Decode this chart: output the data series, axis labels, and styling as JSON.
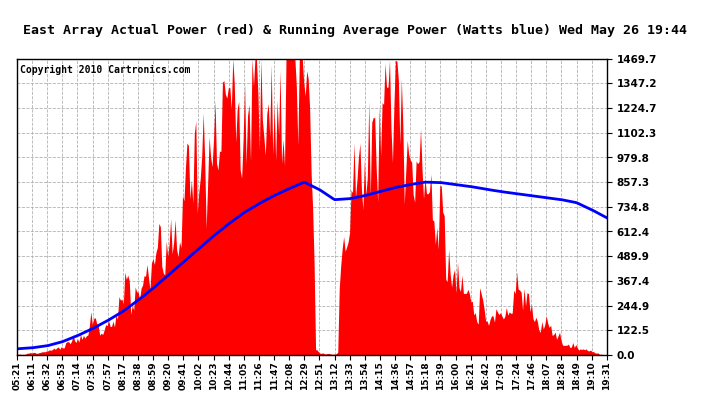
{
  "title": "East Array Actual Power (red) & Running Average Power (Watts blue) Wed May 26 19:44",
  "copyright": "Copyright 2010 Cartronics.com",
  "yticks": [
    0.0,
    122.5,
    244.9,
    367.4,
    489.9,
    612.4,
    734.8,
    857.3,
    979.8,
    1102.3,
    1224.7,
    1347.2,
    1469.7
  ],
  "ylim": [
    0,
    1469.7
  ],
  "fill_color": "red",
  "avg_color": "blue",
  "bg_color": "white",
  "grid_color": "#aaaaaa",
  "x_labels": [
    "05:21",
    "06:11",
    "06:32",
    "06:53",
    "07:14",
    "07:35",
    "07:57",
    "08:17",
    "08:38",
    "08:59",
    "09:20",
    "09:41",
    "10:02",
    "10:23",
    "10:44",
    "11:05",
    "11:26",
    "11:47",
    "12:08",
    "12:29",
    "12:51",
    "13:12",
    "13:33",
    "13:54",
    "14:15",
    "14:36",
    "14:57",
    "15:18",
    "15:39",
    "16:00",
    "16:21",
    "16:42",
    "17:03",
    "17:24",
    "17:46",
    "18:07",
    "18:28",
    "18:49",
    "19:10",
    "19:31"
  ],
  "title_fontsize": 9.5,
  "copyright_fontsize": 7,
  "tick_fontsize": 7.5,
  "xtick_fontsize": 6.5
}
